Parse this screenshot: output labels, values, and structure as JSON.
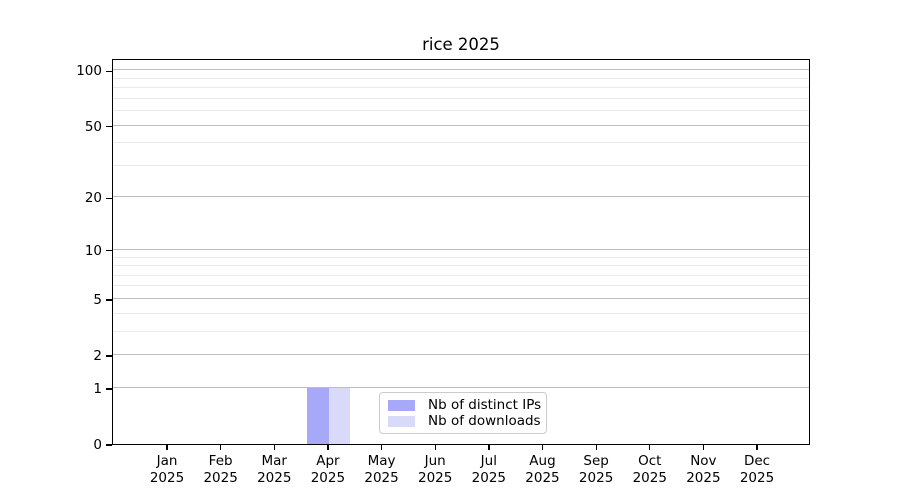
{
  "chart_data": {
    "type": "bar",
    "title": "rice 2025",
    "categories": [
      "Jan",
      "Feb",
      "Mar",
      "Apr",
      "May",
      "Jun",
      "Jul",
      "Aug",
      "Sep",
      "Oct",
      "Nov",
      "Dec"
    ],
    "category_year": "2025",
    "series": [
      {
        "name": "Nb of distinct IPs",
        "color": "#a8a8f8",
        "values": [
          0,
          0,
          0,
          1,
          0,
          0,
          0,
          0,
          0,
          0,
          0,
          0
        ]
      },
      {
        "name": "Nb of downloads",
        "color": "#d9d9f9",
        "values": [
          0,
          0,
          0,
          1,
          0,
          0,
          0,
          0,
          0,
          0,
          0,
          0
        ]
      }
    ],
    "xlabel": "",
    "ylabel": "",
    "yscale": "log10(1+y)",
    "y_major_ticks": [
      0,
      1,
      2,
      5,
      10,
      20,
      50,
      100
    ],
    "y_minor_gridlines": [
      3,
      4,
      6,
      7,
      8,
      9,
      30,
      40,
      60,
      70,
      80,
      90
    ],
    "ylim": [
      0,
      116
    ],
    "grid": "horizontal",
    "legend_position": "inside-bottom-center",
    "colors": {
      "major_grid": "#bdbdbd",
      "minor_grid": "#eaeaea",
      "axis": "#000000",
      "background": "#ffffff"
    }
  }
}
